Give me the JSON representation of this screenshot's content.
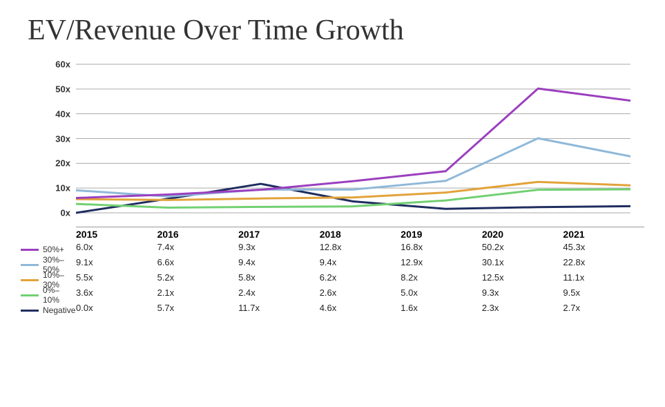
{
  "title": "EV/Revenue Over Time Growth",
  "chart": {
    "type": "line",
    "background_color": "#ffffff",
    "grid_color": "#aaaaaa",
    "axis_color": "#333333",
    "ylim": [
      0,
      60
    ],
    "ytick_step": 10,
    "ytick_suffix": "x",
    "ytick_labels": [
      "0x",
      "10x",
      "20x",
      "30x",
      "40x",
      "50x",
      "60x"
    ],
    "line_width": 3,
    "label_fontsize": 13,
    "title_fontsize": 42,
    "categories": [
      "2015",
      "2016",
      "2017",
      "2018",
      "2019",
      "2020",
      "2021"
    ],
    "series": [
      {
        "name": "50%+",
        "color": "#9b3fbf",
        "values": [
          6.0,
          7.4,
          9.3,
          12.8,
          16.8,
          50.2,
          45.3
        ]
      },
      {
        "name": "30%–50%",
        "color": "#8fb8d8",
        "values": [
          9.1,
          6.6,
          9.4,
          9.4,
          12.9,
          30.1,
          22.8
        ]
      },
      {
        "name": "10%–30%",
        "color": "#e2a33a",
        "values": [
          5.5,
          5.2,
          5.8,
          6.2,
          8.2,
          12.5,
          11.1
        ]
      },
      {
        "name": "0%–10%",
        "color": "#72d072",
        "values": [
          3.6,
          2.1,
          2.4,
          2.6,
          5.0,
          9.3,
          9.5
        ]
      },
      {
        "name": "Negative",
        "color": "#1f2d5f",
        "values": [
          0.0,
          5.7,
          11.7,
          4.6,
          1.6,
          2.3,
          2.7
        ]
      }
    ],
    "table_suffix": "x"
  }
}
